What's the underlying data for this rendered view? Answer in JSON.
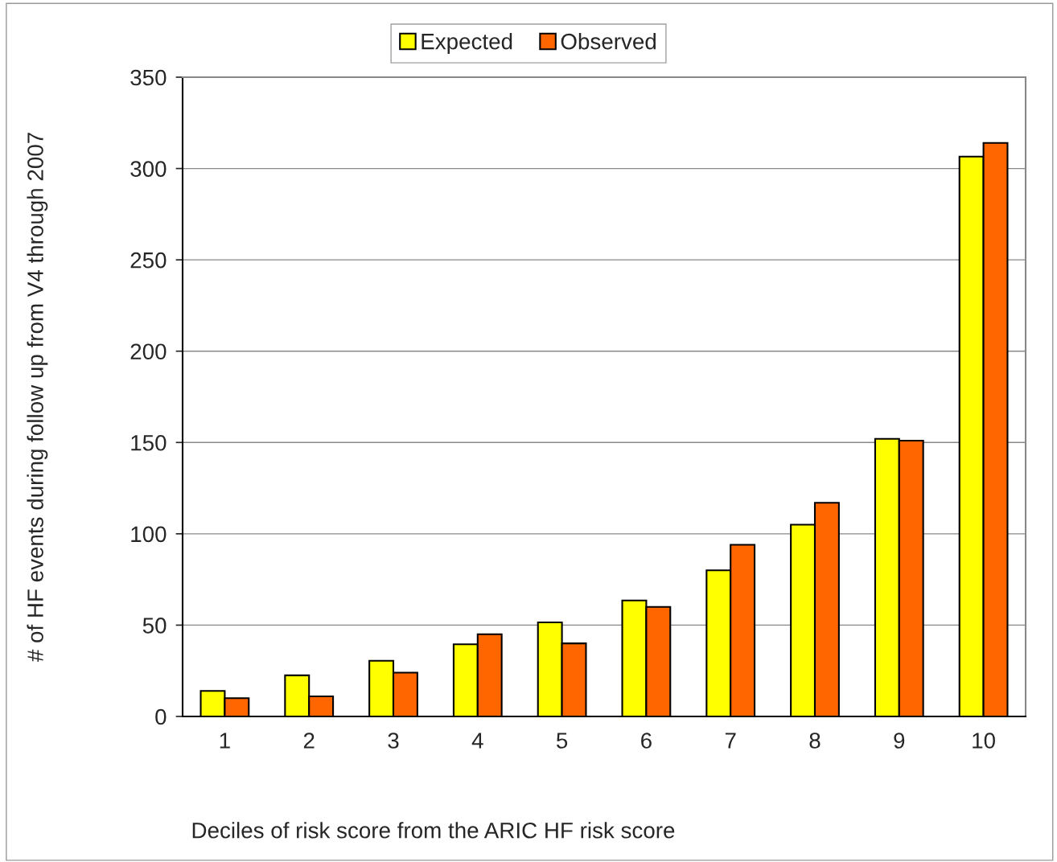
{
  "chart_data": {
    "type": "bar",
    "xlabel": "Deciles of risk score from the ARIC HF risk score",
    "ylabel": "# of HF events during follow up from V4 through 2007",
    "categories": [
      "1",
      "2",
      "3",
      "4",
      "5",
      "6",
      "7",
      "8",
      "9",
      "10"
    ],
    "series": [
      {
        "name": "Expected",
        "color": "#ffff00",
        "values": [
          14,
          22.5,
          30.5,
          39.5,
          51.5,
          63.5,
          80,
          105,
          152,
          306.5
        ]
      },
      {
        "name": "Observed",
        "color": "#ff6600",
        "values": [
          10,
          11,
          24,
          45,
          40,
          60,
          94,
          117,
          151,
          314
        ]
      }
    ],
    "ylim": [
      0,
      350
    ],
    "yticks": [
      0,
      50,
      100,
      150,
      200,
      250,
      300,
      350
    ],
    "grid": "y",
    "legend": "top"
  }
}
